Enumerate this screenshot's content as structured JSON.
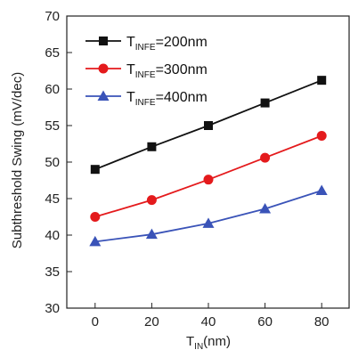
{
  "chart_data": {
    "type": "line",
    "xlabel": {
      "main": "T",
      "sub": "IN",
      "suffix": "(nm)"
    },
    "ylabel": "Subthreshold Swing (mV/dec)",
    "xlim": [
      -10,
      90
    ],
    "ylim": [
      30,
      70
    ],
    "x": [
      0,
      20,
      40,
      60,
      80
    ],
    "xticks": [
      "0",
      "20",
      "40",
      "60",
      "80"
    ],
    "yticks": [
      "30",
      "35",
      "40",
      "45",
      "50",
      "55",
      "60",
      "65",
      "70"
    ],
    "legend_position": "top-left",
    "grid": false,
    "series": [
      {
        "name_main": "T",
        "name_sub": "INFE",
        "name_suffix": "=200nm",
        "marker": "square",
        "color": "#111111",
        "values": [
          49.0,
          52.1,
          55.0,
          58.1,
          61.2
        ]
      },
      {
        "name_main": "T",
        "name_sub": "INFE",
        "name_suffix": "=300nm",
        "marker": "circle",
        "color": "#e41a1c",
        "values": [
          42.5,
          44.8,
          47.6,
          50.6,
          53.6
        ]
      },
      {
        "name_main": "T",
        "name_sub": "INFE",
        "name_suffix": "=400nm",
        "marker": "triangle",
        "color": "#3a53b8",
        "values": [
          39.1,
          40.1,
          41.6,
          43.6,
          46.1
        ]
      }
    ]
  }
}
